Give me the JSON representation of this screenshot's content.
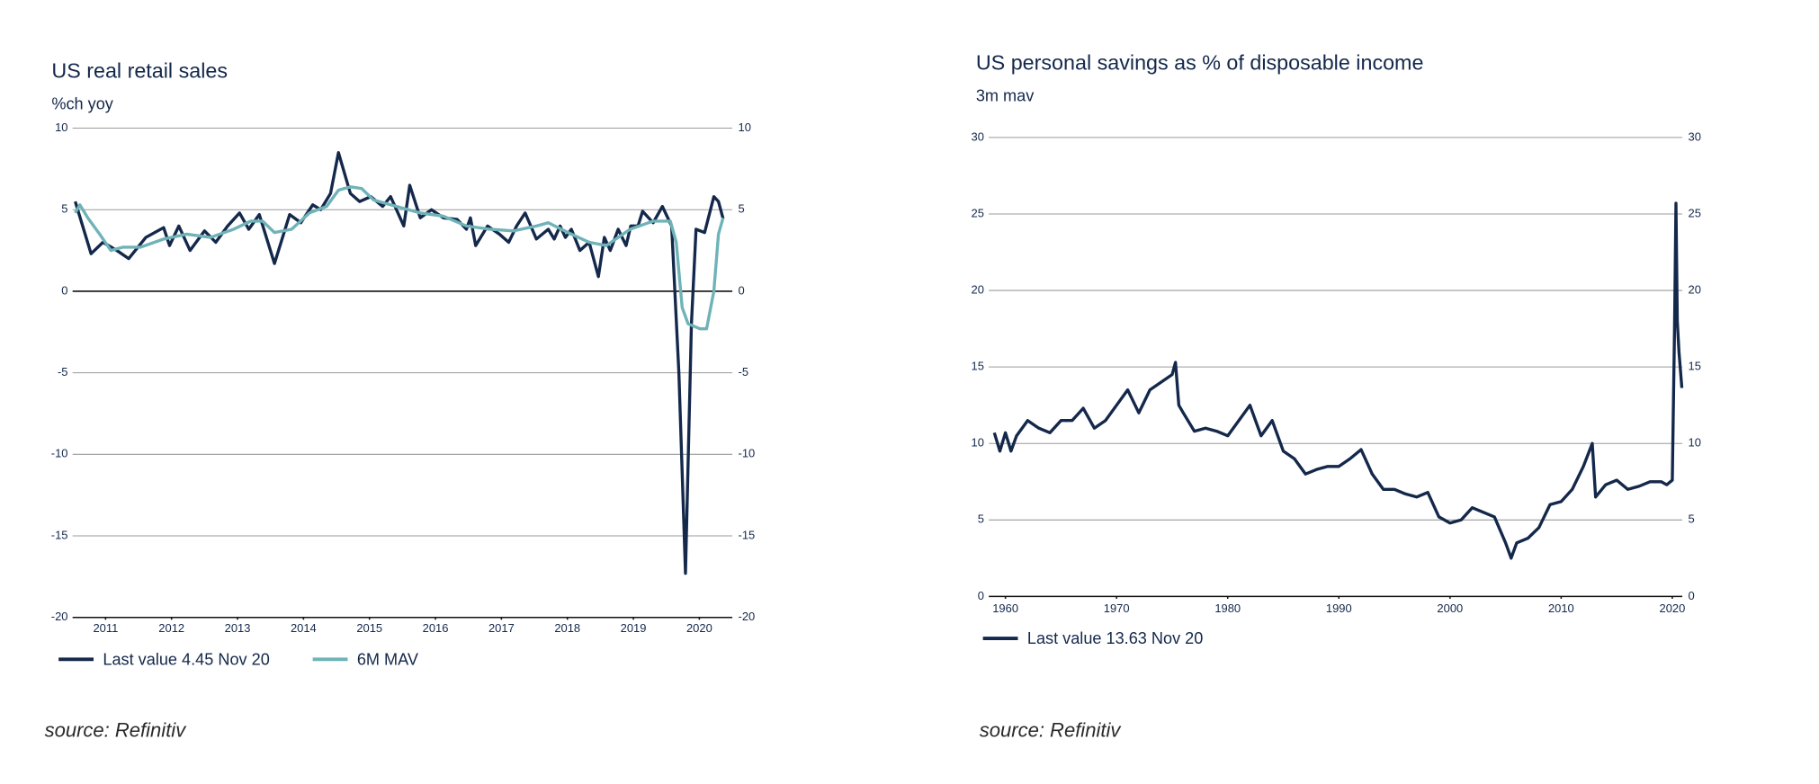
{
  "chart_data": [
    {
      "type": "line",
      "title": "US real retail sales",
      "subtitle": "%ch yoy",
      "source": "source: Refinitiv",
      "xlim": [
        2011,
        2021
      ],
      "xticks": [
        {
          "value": 2011.5,
          "label": "2011"
        },
        {
          "value": 2012.5,
          "label": "2012"
        },
        {
          "value": 2013.5,
          "label": "2013"
        },
        {
          "value": 2014.5,
          "label": "2014"
        },
        {
          "value": 2015.5,
          "label": "2015"
        },
        {
          "value": 2016.5,
          "label": "2016"
        },
        {
          "value": 2017.5,
          "label": "2017"
        },
        {
          "value": 2018.5,
          "label": "2018"
        },
        {
          "value": 2019.5,
          "label": "2019"
        },
        {
          "value": 2020.5,
          "label": "2020"
        }
      ],
      "ylim": [
        -20,
        10
      ],
      "yticks": [
        10,
        5,
        0,
        -5,
        -10,
        -15,
        -20
      ],
      "y2lim": [
        -20,
        10
      ],
      "y2ticks": [
        10,
        5,
        0,
        -5,
        -10,
        -15,
        -20
      ],
      "grid": true,
      "series": [
        {
          "name": "Last value  4.45 Nov 20",
          "color": "#14284b",
          "x": [
            2011.04,
            2011.28,
            2011.46,
            2011.67,
            2011.85,
            2012.11,
            2012.38,
            2012.47,
            2012.61,
            2012.78,
            2013.0,
            2013.17,
            2013.35,
            2013.53,
            2013.67,
            2013.83,
            2014.06,
            2014.29,
            2014.46,
            2014.64,
            2014.76,
            2014.91,
            2015.03,
            2015.21,
            2015.35,
            2015.52,
            2015.7,
            2015.82,
            2016.02,
            2016.11,
            2016.27,
            2016.44,
            2016.62,
            2016.83,
            2016.97,
            2017.03,
            2017.11,
            2017.29,
            2017.47,
            2017.61,
            2017.73,
            2017.86,
            2018.03,
            2018.21,
            2018.3,
            2018.39,
            2018.47,
            2018.56,
            2018.69,
            2018.83,
            2018.97,
            2019.06,
            2019.15,
            2019.27,
            2019.39,
            2019.46,
            2019.57,
            2019.64,
            2019.8,
            2019.94,
            2020.08,
            2020.19,
            2020.29,
            2020.38,
            2020.45,
            2020.58,
            2020.72,
            2020.79,
            2020.86
          ],
          "values": [
            5.5,
            2.3,
            3.0,
            2.5,
            2.0,
            3.3,
            3.9,
            2.8,
            4.0,
            2.5,
            3.7,
            3.0,
            4.0,
            4.8,
            3.8,
            4.7,
            1.7,
            4.7,
            4.2,
            5.3,
            5.0,
            6.0,
            8.5,
            6.0,
            5.5,
            5.8,
            5.2,
            5.8,
            4.0,
            6.5,
            4.5,
            5.0,
            4.5,
            4.4,
            3.8,
            4.5,
            2.8,
            4.0,
            3.5,
            3.0,
            4.0,
            4.8,
            3.2,
            3.8,
            3.2,
            4.0,
            3.3,
            3.8,
            2.5,
            3.0,
            0.9,
            3.3,
            2.5,
            3.8,
            2.8,
            4.0,
            4.0,
            4.9,
            4.2,
            5.2,
            4.0,
            -5,
            -17.3,
            -2,
            3.8,
            3.6,
            5.8,
            5.5,
            4.45
          ]
        },
        {
          "name": "6M MAV",
          "color": "#6fb3b8",
          "x": [
            2011.04,
            2011.11,
            2011.23,
            2011.41,
            2011.58,
            2011.76,
            2012.03,
            2012.38,
            2012.73,
            2013.09,
            2013.44,
            2013.7,
            2013.88,
            2014.06,
            2014.32,
            2014.59,
            2014.85,
            2015.03,
            2015.21,
            2015.38,
            2015.56,
            2015.91,
            2016.27,
            2016.62,
            2016.97,
            2017.33,
            2017.68,
            2018.03,
            2018.21,
            2018.56,
            2018.83,
            2019.09,
            2019.45,
            2019.8,
            2020.06,
            2020.15,
            2020.24,
            2020.33,
            2020.51,
            2020.61,
            2020.72,
            2020.79,
            2020.86
          ],
          "values": [
            4.8,
            5.3,
            4.5,
            3.5,
            2.5,
            2.7,
            2.7,
            3.2,
            3.5,
            3.3,
            3.8,
            4.3,
            4.3,
            3.6,
            3.8,
            4.8,
            5.2,
            6.2,
            6.4,
            6.3,
            5.6,
            5.2,
            4.8,
            4.6,
            4.0,
            3.8,
            3.7,
            4.0,
            4.2,
            3.5,
            3.0,
            2.8,
            3.8,
            4.3,
            4.3,
            3.0,
            -1.0,
            -2.0,
            -2.3,
            -2.3,
            0,
            3.5,
            4.5
          ]
        }
      ]
    },
    {
      "type": "line",
      "title": "US personal savings as % of disposable income",
      "subtitle": "3m mav",
      "source": "source: Refinitiv",
      "xlim": [
        1958.5,
        2020.9
      ],
      "xticks": [
        1960,
        1970,
        1980,
        1990,
        2000,
        2010,
        2020
      ],
      "ylim": [
        0,
        30
      ],
      "yticks": [
        30,
        25,
        20,
        15,
        10,
        5,
        0
      ],
      "y2lim": [
        0,
        30
      ],
      "y2ticks": [
        30,
        25,
        20,
        15,
        10,
        5,
        0
      ],
      "grid": true,
      "series": [
        {
          "name": "Last value 13.63 Nov 20",
          "color": "#14284b",
          "x": [
            1959,
            1959.5,
            1960,
            1960.5,
            1961,
            1962,
            1963,
            1964,
            1965,
            1966,
            1967,
            1968,
            1969,
            1970,
            1971,
            1972,
            1973,
            1974,
            1975,
            1975.3,
            1975.6,
            1976,
            1977,
            1978,
            1979,
            1980,
            1981,
            1982,
            1983,
            1984,
            1985,
            1986,
            1987,
            1988,
            1989,
            1990,
            1991,
            1992,
            1993,
            1994,
            1995,
            1996,
            1997,
            1998,
            1999,
            2000,
            2001,
            2002,
            2003,
            2004,
            2005,
            2005.5,
            2006,
            2007,
            2008,
            2009,
            2010,
            2011,
            2012,
            2012.8,
            2013.1,
            2014,
            2015,
            2016,
            2017,
            2018,
            2019,
            2019.5,
            2020.0,
            2020.2,
            2020.33,
            2020.45,
            2020.6,
            2020.86
          ],
          "values": [
            10.7,
            9.5,
            10.7,
            9.5,
            10.5,
            11.5,
            11.0,
            10.7,
            11.5,
            11.5,
            12.3,
            11.0,
            11.5,
            12.5,
            13.5,
            12.0,
            13.5,
            14.0,
            14.5,
            15.3,
            12.5,
            12.0,
            10.8,
            11.0,
            10.8,
            10.5,
            11.5,
            12.5,
            10.5,
            11.5,
            9.5,
            9.0,
            8.0,
            8.3,
            8.5,
            8.5,
            9.0,
            9.6,
            8.0,
            7.0,
            7.0,
            6.7,
            6.5,
            6.8,
            5.2,
            4.8,
            5.0,
            5.8,
            5.5,
            5.2,
            3.5,
            2.5,
            3.5,
            3.8,
            4.5,
            6.0,
            6.2,
            7.0,
            8.5,
            10.0,
            6.5,
            7.3,
            7.6,
            7.0,
            7.2,
            7.5,
            7.5,
            7.3,
            7.6,
            17.5,
            25.7,
            18,
            16,
            13.63
          ]
        }
      ]
    }
  ]
}
